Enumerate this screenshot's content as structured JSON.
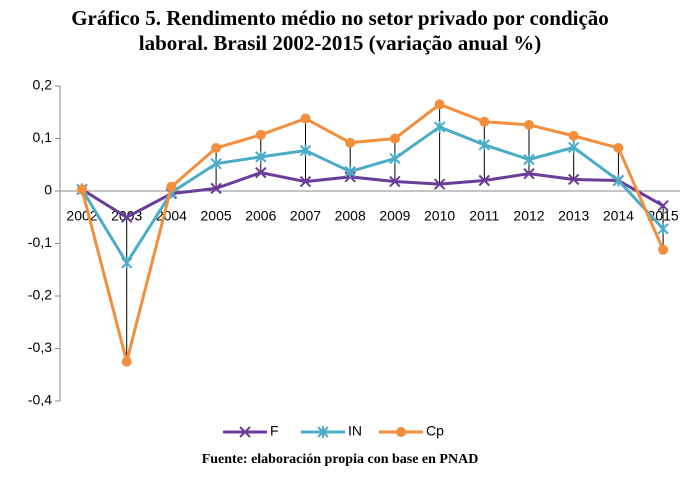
{
  "chart_data": {
    "type": "line",
    "title": "Gráfico 5. Rendimento médio no setor privado por condição laboral. Brasil 2002-2015 (variação anual %)",
    "footnote": "Fuente: elaboración propia con base en PNAD",
    "categories": [
      "2002",
      "2003",
      "2004",
      "2005",
      "2006",
      "2007",
      "2008",
      "2009",
      "2010",
      "2011",
      "2012",
      "2013",
      "2014",
      "2015"
    ],
    "series": [
      {
        "name": "F",
        "color": "#6a3d9a",
        "values": [
          0.003,
          -0.05,
          -0.005,
          0.005,
          0.035,
          0.018,
          0.027,
          0.018,
          0.013,
          0.02,
          0.033,
          0.022,
          0.02,
          -0.028
        ]
      },
      {
        "name": "IN",
        "color": "#4bacc6",
        "values": [
          0.003,
          -0.137,
          -0.003,
          0.052,
          0.065,
          0.077,
          0.037,
          0.062,
          0.122,
          0.088,
          0.06,
          0.083,
          0.02,
          -0.072
        ]
      },
      {
        "name": "Cp",
        "color": "#f28e3c",
        "values": [
          0.003,
          -0.325,
          0.008,
          0.082,
          0.107,
          0.138,
          0.092,
          0.1,
          0.165,
          0.132,
          0.126,
          0.105,
          0.082,
          -0.112
        ]
      }
    ],
    "ylim": [
      -0.4,
      0.2
    ],
    "yticks": [
      {
        "value": -0.4,
        "label": "-0,4"
      },
      {
        "value": -0.3,
        "label": "-0,3"
      },
      {
        "value": -0.2,
        "label": "-0,2"
      },
      {
        "value": -0.1,
        "label": "-0,1"
      },
      0,
      {
        "value": 0.1,
        "label": "0,1"
      },
      {
        "value": 0.2,
        "label": "0,2"
      }
    ],
    "grid": false,
    "high_low_lines": true,
    "legend": "bottom"
  }
}
